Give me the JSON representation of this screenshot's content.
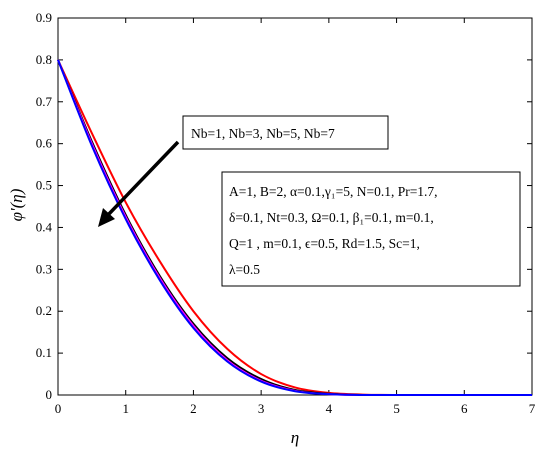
{
  "chart_data": {
    "type": "line",
    "xlabel": "η",
    "ylabel": "φ'(η)",
    "xlim": [
      0,
      7
    ],
    "ylim": [
      0,
      0.9
    ],
    "x_ticks": [
      "0",
      "1",
      "2",
      "3",
      "4",
      "5",
      "6",
      "7"
    ],
    "y_ticks": [
      "0",
      "0.1",
      "0.2",
      "0.3",
      "0.4",
      "0.5",
      "0.6",
      "0.7",
      "0.8",
      "0.9"
    ],
    "grid": false,
    "series": [
      {
        "color": "#ff0000",
        "x": [
          0,
          0.5,
          1,
          1.5,
          2,
          2.5,
          3,
          3.5,
          4,
          4.5,
          5,
          6,
          7
        ],
        "y": [
          0.8,
          0.625,
          0.46,
          0.32,
          0.2,
          0.11,
          0.05,
          0.018,
          0.005,
          0.001,
          0.0,
          0.0,
          0.0
        ]
      },
      {
        "color": "#000000",
        "x": [
          0,
          0.5,
          1,
          1.5,
          2,
          2.5,
          3,
          3.5,
          4,
          4.5,
          5,
          6,
          7
        ],
        "y": [
          0.8,
          0.605,
          0.43,
          0.285,
          0.17,
          0.088,
          0.038,
          0.012,
          0.003,
          0.0,
          0.0,
          0.0,
          0.0
        ]
      },
      {
        "color": "#ff00ff",
        "x": [
          0,
          0.5,
          1,
          1.5,
          2,
          2.5,
          3,
          3.5,
          4,
          4.5,
          5,
          6,
          7
        ],
        "y": [
          0.8,
          0.6,
          0.425,
          0.28,
          0.165,
          0.083,
          0.034,
          0.01,
          0.002,
          0.0,
          0.0,
          0.0,
          0.0
        ]
      },
      {
        "color": "#0000ff",
        "x": [
          0,
          0.5,
          1,
          1.5,
          2,
          2.5,
          3,
          3.5,
          4,
          4.5,
          5,
          6,
          7
        ],
        "y": [
          0.8,
          0.595,
          0.42,
          0.275,
          0.16,
          0.08,
          0.032,
          0.009,
          0.002,
          0.0,
          0.0,
          0.0,
          0.0
        ]
      }
    ],
    "annotations": {
      "legend_text": "Nb=1, Nb=3, Nb=5, Nb=7",
      "param_lines": [
        "A=1, B=2, α=0.1,γ₁=5, N=0.1, Pr=1.7,",
        "δ=0.1, Nt=0.3, Ω=0.1, β₁=0.1, m=0.1,",
        "Q=1 , m=0.1, ϵ=0.5, Rd=1.5, Sc=1,",
        "λ=0.5"
      ]
    }
  }
}
